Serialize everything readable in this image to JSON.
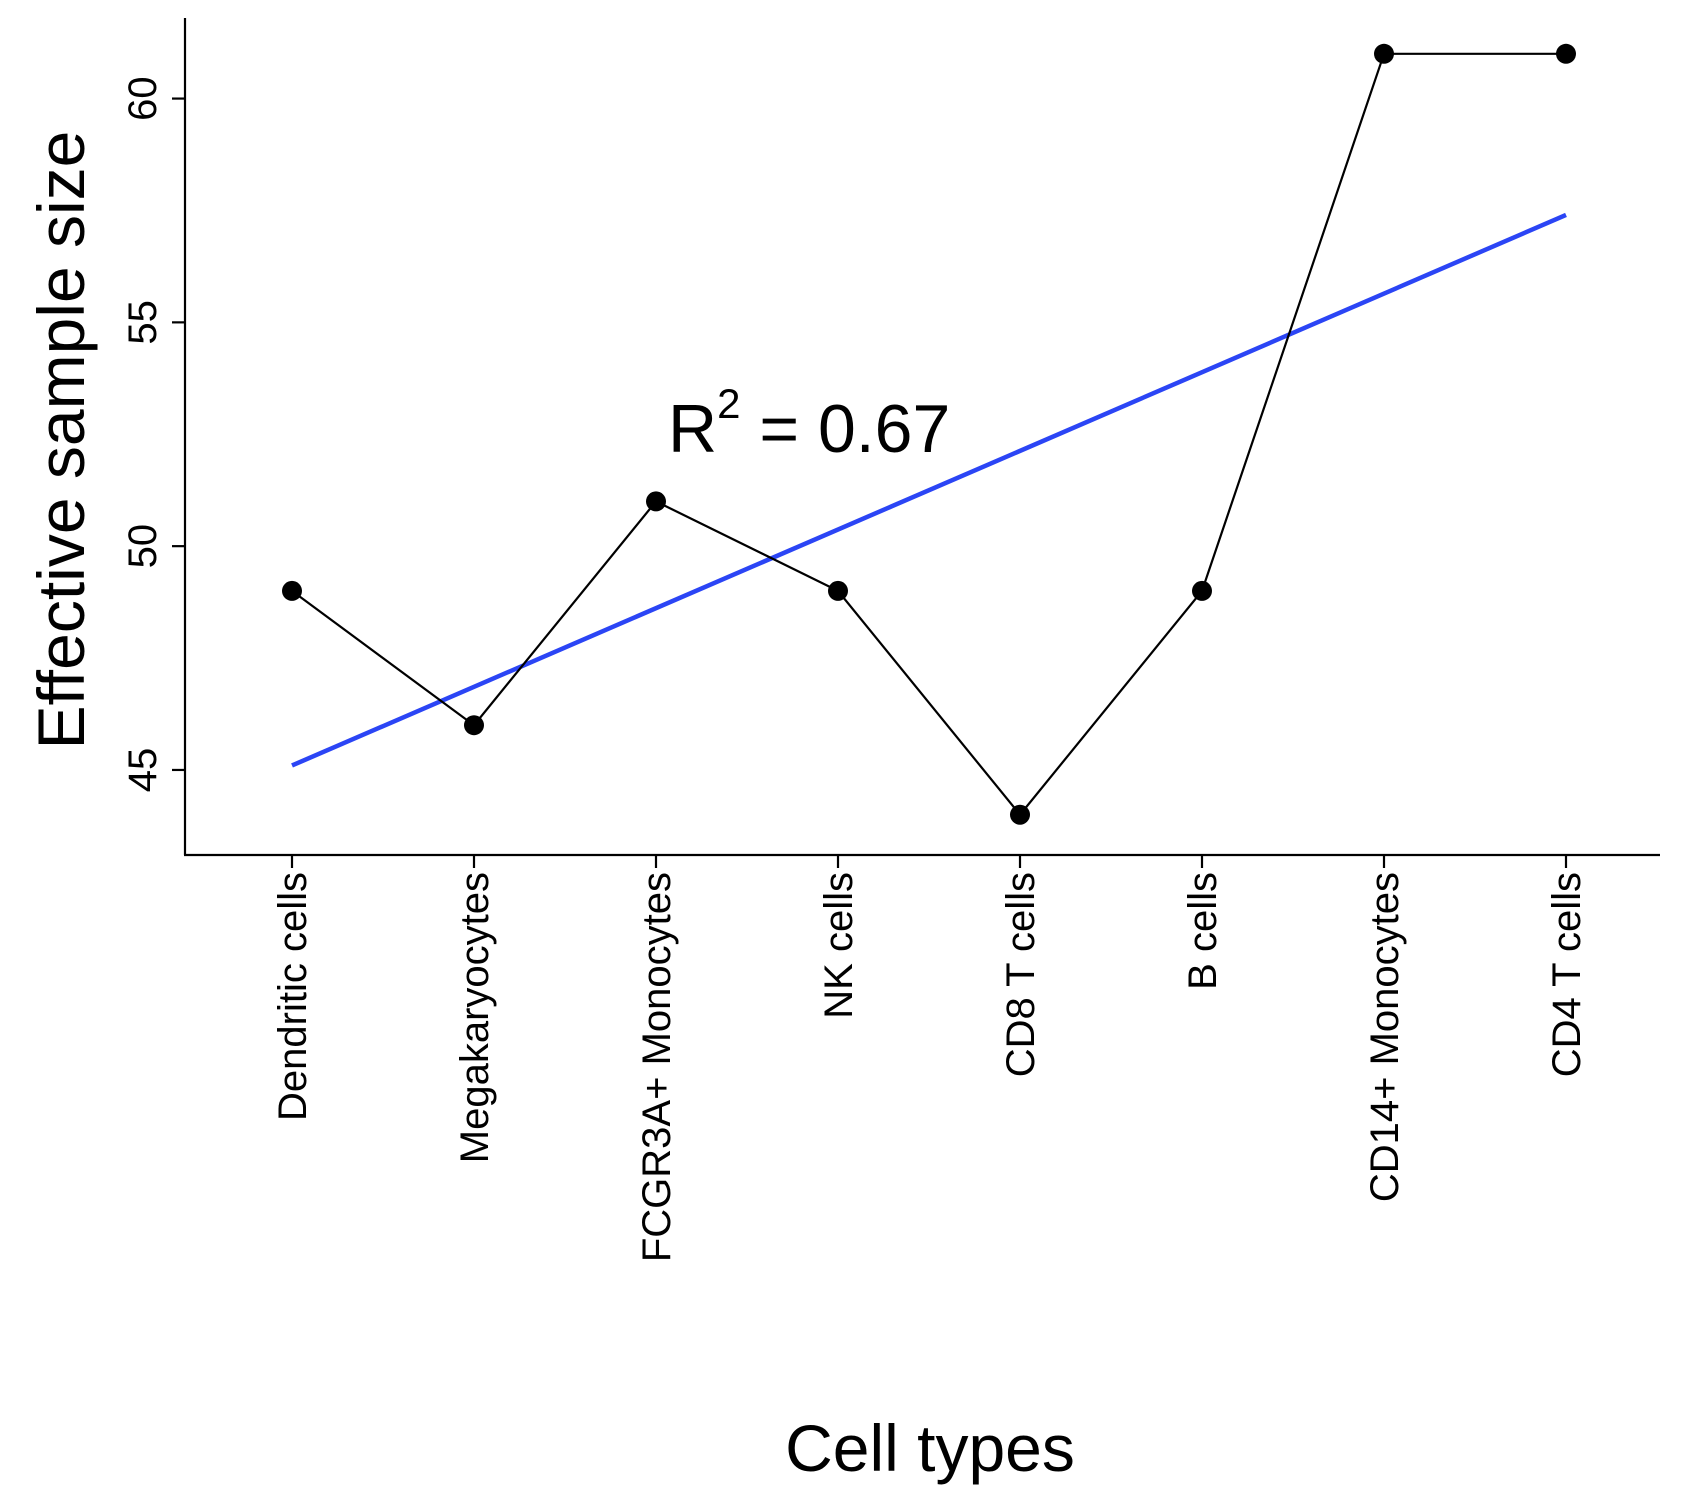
{
  "chart_data": {
    "type": "line",
    "categories": [
      "Dendritic cells",
      "Megakaryocytes",
      "FCGR3A+ Monocytes",
      "NK cells",
      "CD8 T cells",
      "B cells",
      "CD14+ Monocytes",
      "CD4 T cells"
    ],
    "series": [
      {
        "values": [
          49,
          46,
          51,
          49,
          44,
          49,
          61,
          61
        ],
        "color": "#000000",
        "markers": true
      }
    ],
    "trendline": {
      "start": 45.1,
      "end": 57.4,
      "color": "#2b45f5"
    },
    "annotation": {
      "prefix": "R",
      "superscript": "2",
      "suffix": " = 0.67"
    },
    "xlabel": "Cell types",
    "ylabel": "Effective sample size",
    "yticks": [
      45,
      50,
      55,
      60
    ],
    "ylim": [
      43.1,
      61.8
    ],
    "grid": false,
    "legend": "none"
  }
}
